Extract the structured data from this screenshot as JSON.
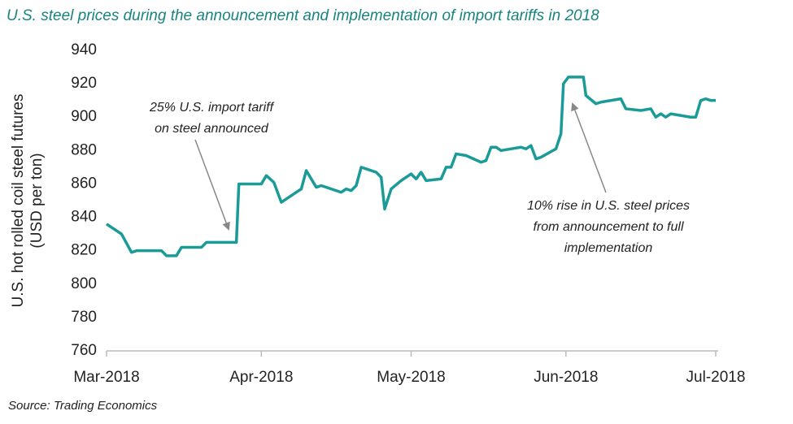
{
  "chart_data": {
    "type": "line",
    "title": "U.S. steel prices during the announcement and implementation of import tariffs in 2018",
    "y_label": [
      "U.S. hot rolled coil steel futures",
      "(USD per ton)"
    ],
    "source": "Source: Trading Economics",
    "annotations": [
      {
        "lines": [
          "25% U.S. import tariff",
          "on steel announced"
        ]
      },
      {
        "lines": [
          "10% rise in U.S. steel prices",
          "from announcement to full",
          "implementation"
        ]
      }
    ],
    "color": "#1a9b98",
    "x": [
      0,
      3,
      5,
      6,
      11,
      12,
      14,
      15,
      19,
      20,
      26,
      26.5,
      31,
      32,
      33.5,
      35,
      38,
      39,
      40,
      42,
      43,
      47,
      48,
      49,
      50,
      51,
      54,
      55,
      55.7,
      57,
      59,
      61,
      62,
      63,
      64,
      67,
      68,
      69,
      70,
      72,
      75,
      76,
      77,
      78,
      79,
      83,
      84,
      85,
      86,
      87,
      90,
      91,
      91.5,
      92.5,
      95.5,
      96,
      98,
      99,
      103,
      104,
      107,
      109,
      110,
      111,
      112,
      113,
      117,
      118,
      119,
      120,
      121,
      122
    ],
    "values": [
      836,
      830,
      819,
      820,
      820,
      817,
      817,
      822,
      822,
      825,
      825,
      860,
      860,
      865,
      861,
      849,
      855,
      857,
      868,
      858,
      859,
      855,
      857,
      856,
      859,
      870,
      867,
      864,
      845,
      857,
      862,
      866,
      863,
      867,
      862,
      863,
      870,
      870,
      878,
      877,
      873,
      874,
      882,
      882,
      880,
      882,
      881,
      883,
      875,
      876,
      881,
      890,
      920,
      924,
      924,
      913,
      908,
      909,
      911,
      905,
      904,
      905,
      900,
      902,
      900,
      902,
      900,
      900,
      910,
      911,
      910,
      910
    ],
    "xlim": [
      0,
      122
    ],
    "xticks": [
      {
        "value": 0,
        "label": "Mar-2018"
      },
      {
        "value": 31,
        "label": "Apr-2018"
      },
      {
        "value": 61,
        "label": "May-2018"
      },
      {
        "value": 92,
        "label": "Jun-2018"
      },
      {
        "value": 122,
        "label": "Jul-2018"
      }
    ],
    "ylim": [
      760,
      940
    ],
    "yticks": [
      760,
      780,
      800,
      820,
      840,
      860,
      880,
      900,
      920,
      940
    ],
    "grid": false
  }
}
